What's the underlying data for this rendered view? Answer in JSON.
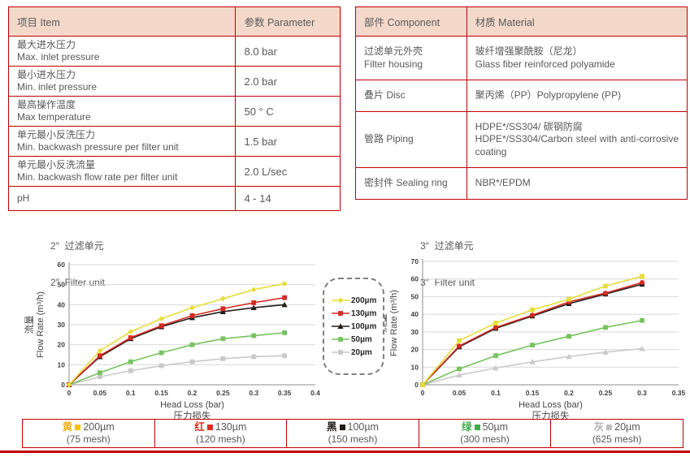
{
  "colors": {
    "accent_red": "#c00000",
    "table_header_bg": "#f4d9cb",
    "text_gray": "#595959"
  },
  "spec_table": {
    "headers": [
      "项目 Item",
      "参数 Parameter"
    ],
    "rows": [
      {
        "item_cn": "最大进水压力",
        "item_en": "Max. inlet pressure",
        "value": "8.0 bar"
      },
      {
        "item_cn": "最小进水压力",
        "item_en": "Min. inlet pressure",
        "value": "2.0 bar"
      },
      {
        "item_cn": "最高操作温度",
        "item_en": "Max temperature",
        "value": "50 ° C"
      },
      {
        "item_cn": "单元最小反洗压力",
        "item_en": "Min. backwash pressure per filter unit",
        "value": "1.5 bar"
      },
      {
        "item_cn": "单元最小反洗流量",
        "item_en": "Min. backwash flow rate per filter unit",
        "value": "2.0 L/sec"
      },
      {
        "item_cn": "pH",
        "item_en": "",
        "value": "4 - 14"
      }
    ]
  },
  "material_table": {
    "headers": [
      "部件 Component",
      "材质 Material"
    ],
    "rows": [
      {
        "component_lines": [
          "过滤单元外壳",
          "Filter housing"
        ],
        "material_lines": [
          "玻纤增强聚酰胺（尼龙）",
          "Glass fiber reinforced polyamide"
        ]
      },
      {
        "component_lines": [
          "叠片 Disc"
        ],
        "material_lines": [
          "聚丙烯（PP）Polypropylene (PP)"
        ]
      },
      {
        "component_lines": [
          "管路 Piping"
        ],
        "material_lines": [
          "HDPE*/SS304/ 碳钢防腐",
          "HDPE*/SS304/Carbon steel with anti-corrosive coating"
        ]
      },
      {
        "component_lines": [
          "密封件 Sealing ring"
        ],
        "material_lines": [
          "NBR*/EPDM"
        ]
      }
    ]
  },
  "chart_data": [
    {
      "type": "line",
      "title_cn": "2″  过滤单元",
      "title_en": "2″  Filter unit",
      "xlabel": "Head Loss (bar)",
      "xlabel_cn": "压力损失",
      "ylabel_cn": "流量",
      "ylabel": "Flow Rate (m³/h)",
      "xlim": [
        0,
        0.4
      ],
      "xstep": 0.05,
      "ylim": [
        0,
        60
      ],
      "ystep": 10,
      "grid": "horizontal",
      "x": [
        0,
        0.05,
        0.1,
        0.15,
        0.2,
        0.25,
        0.3,
        0.35
      ],
      "series": [
        {
          "name": "200µm",
          "color": "#e6de3a",
          "marker": "diamond",
          "values": [
            0,
            17,
            26.5,
            33,
            38.5,
            43,
            47.5,
            50.5
          ]
        },
        {
          "name": "130µm",
          "color": "#d62b22",
          "marker": "square",
          "values": [
            0,
            14.5,
            23.5,
            29.5,
            34.5,
            38,
            41,
            43.5
          ]
        },
        {
          "name": "100µm",
          "color": "#211d1a",
          "marker": "triangle",
          "values": [
            0,
            14,
            23,
            29,
            33.5,
            36.5,
            38.5,
            40
          ]
        },
        {
          "name": "50µm",
          "color": "#77c35f",
          "marker": "square",
          "values": [
            0,
            6,
            11.5,
            16,
            20,
            23,
            24.5,
            26
          ]
        },
        {
          "name": "20µm",
          "color": "#c9c9c9",
          "marker": "square",
          "values": [
            0,
            4,
            7,
            9.5,
            11.5,
            13,
            14,
            14.5
          ]
        }
      ]
    },
    {
      "type": "line",
      "title_cn": "3″  过滤单元",
      "title_en": "3″  Filter unit",
      "xlabel": "Head Loss (bar)",
      "xlabel_cn": "压力损失",
      "ylabel_cn": "流量",
      "ylabel": "Flow Rate (m³/h)",
      "xlim": [
        0,
        0.35
      ],
      "xstep": 0.05,
      "ylim": [
        0,
        70
      ],
      "ystep": 10,
      "grid": "horizontal",
      "x": [
        0,
        0.05,
        0.1,
        0.15,
        0.2,
        0.25,
        0.3
      ],
      "series": [
        {
          "name": "200µm",
          "color": "#e6de3a",
          "marker": "square",
          "values": [
            0,
            25,
            35,
            42.5,
            48.5,
            56,
            61.5
          ]
        },
        {
          "name": "130µm",
          "color": "#d62b22",
          "marker": "circle",
          "values": [
            0,
            22,
            32.5,
            39.5,
            47,
            52,
            58
          ]
        },
        {
          "name": "100µm",
          "color": "#211d1a",
          "marker": "square",
          "values": [
            0,
            21.5,
            32,
            39,
            46,
            51.5,
            57
          ]
        },
        {
          "name": "50µm",
          "color": "#77c35f",
          "marker": "square",
          "values": [
            0,
            9,
            16.5,
            22.5,
            27.5,
            32.5,
            36.5
          ]
        },
        {
          "name": "20µm",
          "color": "#c9c9c9",
          "marker": "triangle",
          "values": [
            0,
            5.5,
            9.5,
            13,
            16,
            18.5,
            20.5
          ]
        }
      ]
    }
  ],
  "legend_box": {
    "entries": [
      {
        "label": "200µm",
        "color": "#e6de3a",
        "marker": "diamond"
      },
      {
        "label": "130µm",
        "color": "#d62b22",
        "marker": "square"
      },
      {
        "label": "100µm",
        "color": "#211d1a",
        "marker": "triangle"
      },
      {
        "label": "50µm",
        "color": "#77c35f",
        "marker": "square"
      },
      {
        "label": "20µm",
        "color": "#c9c9c9",
        "marker": "square"
      }
    ]
  },
  "bottom_legend": {
    "items": [
      {
        "cn": "黄",
        "cn_color": "#f2b01e",
        "swatch_color": "#ffc000",
        "size": "200µm",
        "mesh": "(75 mesh)"
      },
      {
        "cn": "红",
        "cn_color": "#e02b20",
        "swatch_color": "#e02b20",
        "size": "130µm",
        "mesh": "(120 mesh)"
      },
      {
        "cn": "黑",
        "cn_color": "#1f1a17",
        "swatch_color": "#1f1a17",
        "size": "100µm",
        "mesh": "(150 mesh)"
      },
      {
        "cn": "绿",
        "cn_color": "#3fae49",
        "swatch_color": "#3fae49",
        "size": "50µm",
        "mesh": "(300 mesh)"
      },
      {
        "cn": "灰",
        "cn_color": "#b5b5b5",
        "swatch_color": "#bfbfbf",
        "size": "20µm",
        "mesh": "(625 mesh)"
      }
    ]
  }
}
